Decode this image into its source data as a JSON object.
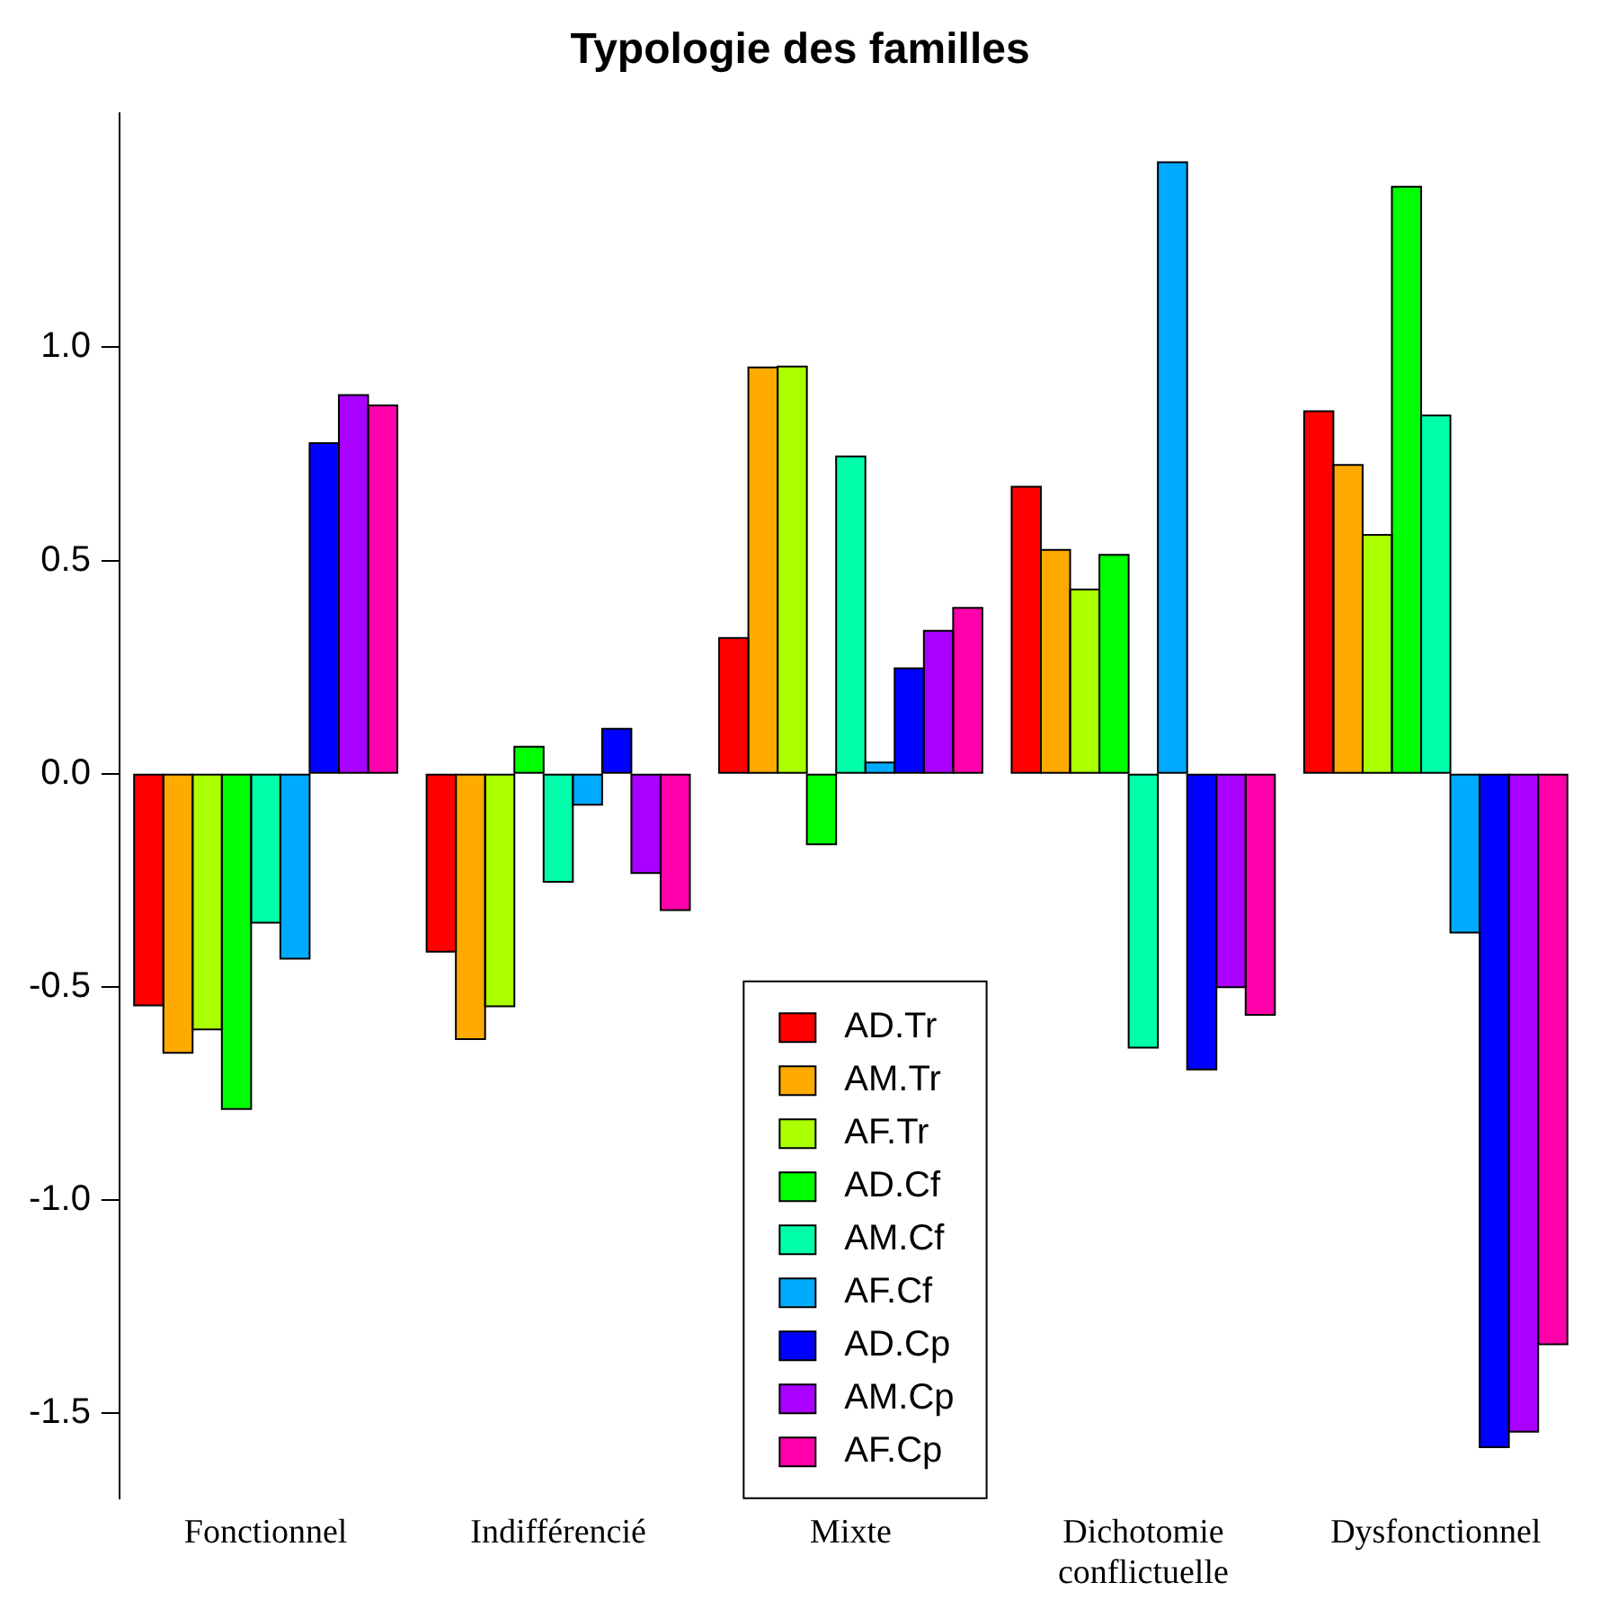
{
  "chart_data": {
    "type": "bar",
    "title": "Typologie des familles",
    "categories": [
      "Fonctionnel",
      "Indifférencié",
      "Mixte",
      "Dichotomie conflictuelle",
      "Dysfonctionnel"
    ],
    "series": [
      {
        "name": "AD.Tr",
        "color": "#ff0000",
        "values": [
          -0.544,
          -0.418,
          0.318,
          0.673,
          0.85
        ]
      },
      {
        "name": "AM.Tr",
        "color": "#ffaa00",
        "values": [
          -0.655,
          -0.623,
          0.953,
          0.525,
          0.724
        ]
      },
      {
        "name": "AF.Tr",
        "color": "#aaff00",
        "values": [
          -0.6,
          -0.546,
          0.955,
          0.432,
          0.56
        ]
      },
      {
        "name": "AD.Cf",
        "color": "#00ff00",
        "values": [
          -0.787,
          0.063,
          -0.166,
          0.513,
          1.377
        ]
      },
      {
        "name": "AM.Cf",
        "color": "#00ffaa",
        "values": [
          -0.35,
          -0.254,
          0.744,
          -0.643,
          0.84
        ]
      },
      {
        "name": "AF.Cf",
        "color": "#00aaff",
        "values": [
          -0.434,
          -0.073,
          0.026,
          1.434,
          -0.373
        ]
      },
      {
        "name": "AD.Cp",
        "color": "#0000ff",
        "values": [
          0.775,
          0.105,
          0.247,
          -0.694,
          -1.58
        ]
      },
      {
        "name": "AM.Cp",
        "color": "#aa00ff",
        "values": [
          0.888,
          -0.233,
          0.335,
          -0.501,
          -1.544
        ]
      },
      {
        "name": "AF.Cp",
        "color": "#ff00aa",
        "values": [
          0.864,
          -0.32,
          0.389,
          -0.566,
          -1.339
        ]
      }
    ],
    "ylim": [
      -1.7,
      1.55
    ],
    "yticks": [
      {
        "value": -1.5,
        "label": "-1.5"
      },
      {
        "value": -1,
        "label": "-1.0"
      },
      {
        "value": -0.5,
        "label": "-0.5"
      },
      {
        "value": 0,
        "label": "0.0"
      },
      {
        "value": 0.5,
        "label": "0.5"
      },
      {
        "value": 1,
        "label": "1.0"
      }
    ],
    "grid": false,
    "legend": "bottom"
  }
}
